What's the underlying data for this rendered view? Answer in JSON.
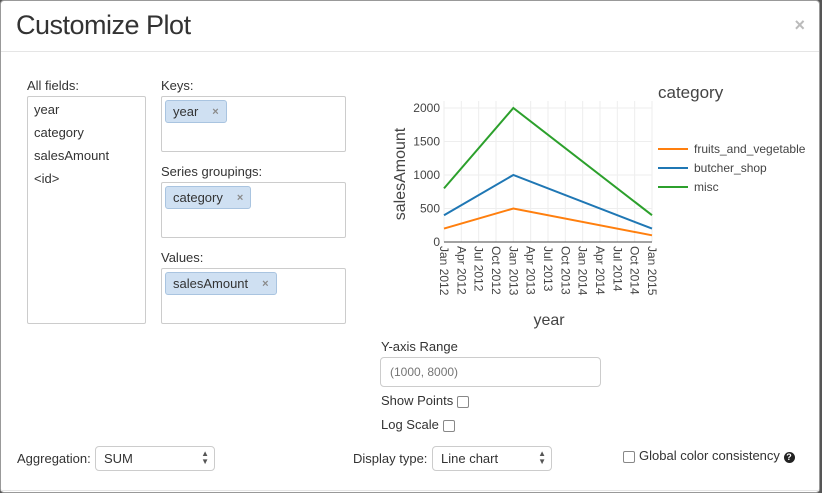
{
  "modal": {
    "title": "Customize Plot",
    "close_label": "×"
  },
  "all_fields": {
    "label": "All fields:",
    "items": [
      "year",
      "category",
      "salesAmount",
      "<id>"
    ]
  },
  "keys": {
    "label": "Keys:",
    "tags": [
      "year"
    ]
  },
  "series_groupings": {
    "label": "Series groupings:",
    "tags": [
      "category"
    ]
  },
  "values": {
    "label": "Values:",
    "tags": [
      "salesAmount"
    ]
  },
  "tag_remove_label": "×",
  "y_axis_range": {
    "label": "Y-axis Range",
    "placeholder": "(1000, 8000)",
    "value": ""
  },
  "show_points": {
    "label": "Show Points",
    "checked": false
  },
  "log_scale": {
    "label": "Log Scale",
    "checked": false
  },
  "aggregation": {
    "label": "Aggregation:",
    "value": "SUM"
  },
  "display_type": {
    "label": "Display type:",
    "value": "Line chart"
  },
  "global_color": {
    "label": "Global color consistency",
    "checked": false,
    "help_icon": "question-circle-icon"
  },
  "chart_data": {
    "type": "line",
    "xlabel": "year",
    "ylabel": "salesAmount",
    "legend_title": "category",
    "legend_position": "right",
    "grid": true,
    "ylim": [
      0,
      2000
    ],
    "yticks": [
      "0",
      "500",
      "1000",
      "1500",
      "2000"
    ],
    "xticks": [
      "Jan 2012",
      "Apr 2012",
      "Jul 2012",
      "Oct 2012",
      "Jan 2013",
      "Apr 2013",
      "Jul 2013",
      "Oct 2013",
      "Jan 2014",
      "Apr 2014",
      "Jul 2014",
      "Oct 2014",
      "Jan 2015"
    ],
    "x": [
      "2012-01",
      "2013-01",
      "2015-01"
    ],
    "series": [
      {
        "name": "fruits_and_vegetable",
        "color": "#ff7f0e",
        "values": [
          200,
          500,
          100
        ]
      },
      {
        "name": "butcher_shop",
        "color": "#1f77b4",
        "values": [
          400,
          1000,
          200
        ]
      },
      {
        "name": "misc",
        "color": "#2ca02c",
        "values": [
          800,
          2000,
          400
        ]
      }
    ]
  }
}
